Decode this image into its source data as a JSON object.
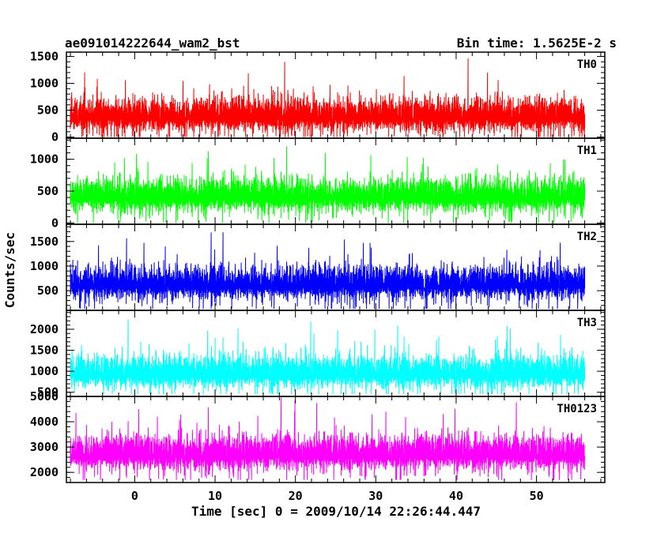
{
  "chart_data": {
    "type": "line",
    "title_left": "ae091014222644_wam2_bst",
    "title_right": "Bin time: 1.5625E-2 s",
    "xlabel": "Time [sec] 0 = 2009/10/14 22:26:44.447",
    "ylabel": "Counts/sec",
    "xlim": [
      -8.5,
      58.5
    ],
    "x_range_data": [
      -8,
      56
    ],
    "xticks": [
      0,
      10,
      20,
      30,
      40,
      50
    ],
    "series": [
      {
        "name": "TH0",
        "color": "#ff0000",
        "ylim": [
          -20,
          1580
        ],
        "yticks": [
          0,
          500,
          1000,
          1500
        ],
        "data_range": [
          0,
          1550
        ],
        "mean": 560
      },
      {
        "name": "TH1",
        "color": "#00ff00",
        "ylim": [
          -20,
          1330
        ],
        "yticks": [
          0,
          500,
          1000
        ],
        "data_range": [
          0,
          1300
        ],
        "mean": 560
      },
      {
        "name": "TH2",
        "color": "#0000ff",
        "ylim": [
          100,
          1850
        ],
        "yticks": [
          500,
          1000,
          1500
        ],
        "data_range": [
          130,
          1800
        ],
        "mean": 820
      },
      {
        "name": "TH3",
        "color": "#00ffff",
        "ylim": [
          400,
          2450
        ],
        "yticks": [
          500,
          1000,
          1500,
          2000
        ],
        "data_range": [
          450,
          2400
        ],
        "mean": 1170
      },
      {
        "name": "TH0123",
        "color": "#ff00ff",
        "ylim": [
          1600,
          5000
        ],
        "yticks": [
          2000,
          3000,
          4000,
          5000
        ],
        "data_range": [
          1700,
          5000
        ],
        "mean": 3100
      }
    ]
  }
}
